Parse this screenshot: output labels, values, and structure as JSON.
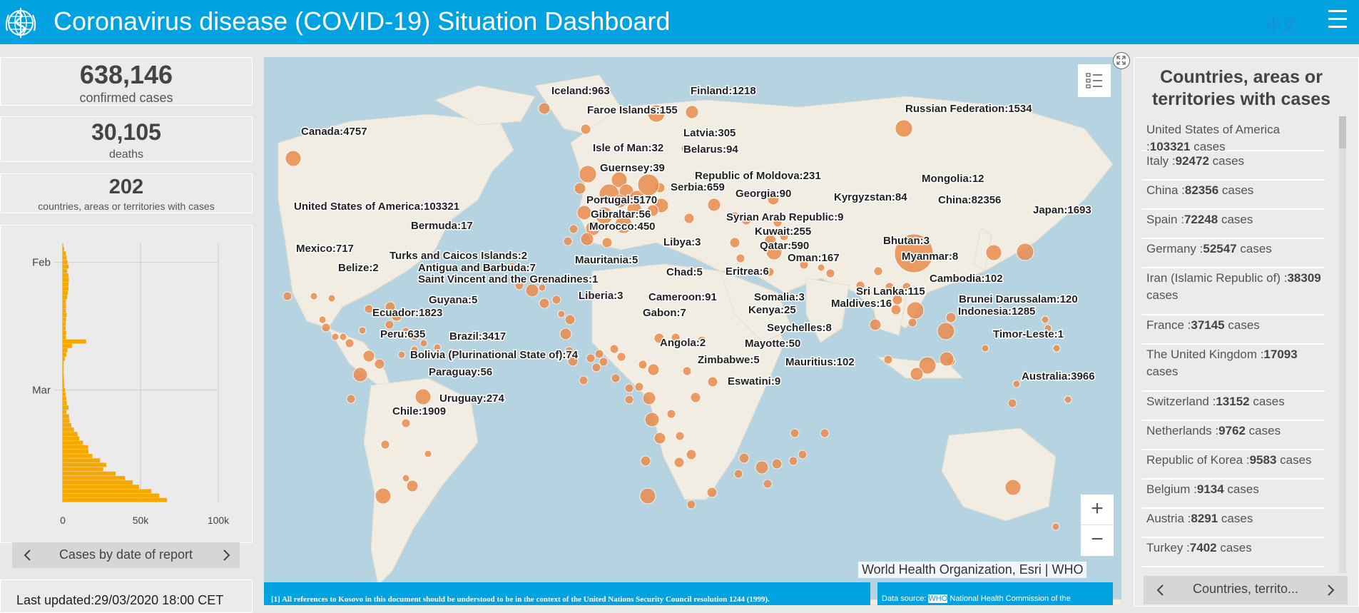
{
  "header": {
    "title": "Coronavirus disease (COVID-19) Situation Dashboard",
    "lang": "中文",
    "logo_icon": "who-emblem-icon",
    "menu_icon": "hamburger-menu-icon",
    "bg_color": "#00a2e0"
  },
  "stats": {
    "confirmed": {
      "value": "638,146",
      "label": "confirmed cases"
    },
    "deaths": {
      "value": "30,105",
      "label": "deaths"
    },
    "countries": {
      "value": "202",
      "label": "countries, areas or territories with cases"
    }
  },
  "left_chart": {
    "nav_label": "Cases by date of report",
    "chart_data": {
      "type": "bar",
      "orientation": "horizontal",
      "y_ticks": [
        "Feb",
        "Mar"
      ],
      "x_ticks": [
        "0",
        "50k",
        "100k"
      ],
      "xlim": [
        0,
        100000
      ],
      "bar_color": "#f5a800",
      "grid": true,
      "note": "daily new confirmed cases; values estimated from gridlines",
      "values": [
        900,
        2000,
        2500,
        3000,
        3800,
        2800,
        3600,
        3900,
        3700,
        3700,
        3200,
        2700,
        2000,
        2100,
        2000,
        2500,
        2100,
        1900,
        1800,
        2200,
        2100,
        15000,
        6000,
        3000,
        2300,
        1300,
        500,
        550,
        450,
        700,
        850,
        1000,
        1400,
        1900,
        2200,
        2600,
        3800,
        2400,
        4000,
        4300,
        5500,
        7200,
        9500,
        10600,
        13000,
        16300,
        16500,
        19000,
        24000,
        28000,
        26000,
        34000,
        40000,
        45000,
        49000,
        57000,
        62000,
        67000
      ]
    }
  },
  "last_updated": "Last updated:29/03/2020 18:00 CET",
  "map": {
    "attribution": "World Health Organization, Esri | WHO",
    "zoom_in": "+",
    "zoom_out": "−",
    "legend_icon": "legend-list-icon",
    "expand_icon": "expand-icon",
    "footnote": "[1] All references to Kosovo in this document should be understood to be in the context of the United Nations Security Council resolution 1244 (1999).",
    "source_prefix": "Data source: ",
    "source_highlight": "WHO",
    "source_suffix": " National Health Commission of the",
    "bubble_color": "#e98c4d",
    "water_color": "#b5d3e0",
    "land_color": "#f1ede3",
    "labels": [
      {
        "text": "Iceland:963"
      },
      {
        "text": "Finland:1218"
      },
      {
        "text": "Faroe Islands:155"
      },
      {
        "text": "Russian Federation:1534"
      },
      {
        "text": "Canada:4757"
      },
      {
        "text": "Latvia:305"
      },
      {
        "text": "Isle of Man:32"
      },
      {
        "text": "Belarus:94"
      },
      {
        "text": "Guernsey:39"
      },
      {
        "text": "Republic of Moldova:231"
      },
      {
        "text": "Mongolia:12"
      },
      {
        "text": "Serbia:659"
      },
      {
        "text": "Georgia:90"
      },
      {
        "text": "Kyrgyzstan:84"
      },
      {
        "text": "China:82356"
      },
      {
        "text": "United States of America:103321"
      },
      {
        "text": "Portugal:5170"
      },
      {
        "text": "Gibraltar:56"
      },
      {
        "text": "Syrian Arab Republic:9"
      },
      {
        "text": "Japan:1693"
      },
      {
        "text": "Bermuda:17"
      },
      {
        "text": "Morocco:450"
      },
      {
        "text": "Kuwait:255"
      },
      {
        "text": "Qatar:590"
      },
      {
        "text": "Libya:3"
      },
      {
        "text": "Bhutan:3"
      },
      {
        "text": "Mexico:717"
      },
      {
        "text": "Turks and Caicos Islands:2"
      },
      {
        "text": "Mauritania:5"
      },
      {
        "text": "Oman:167"
      },
      {
        "text": "Myanmar:8"
      },
      {
        "text": "Belize:2"
      },
      {
        "text": "Antigua and Barbuda:7"
      },
      {
        "text": "Chad:5"
      },
      {
        "text": "Eritrea:6"
      },
      {
        "text": "Cambodia:102"
      },
      {
        "text": "Saint Vincent and the Grenadines:1"
      },
      {
        "text": "Liberia:3"
      },
      {
        "text": "Cameroon:91"
      },
      {
        "text": "Somalia:3"
      },
      {
        "text": "Sri Lanka:115"
      },
      {
        "text": "Brunei Darussalam:120"
      },
      {
        "text": "Guyana:5"
      },
      {
        "text": "Maldives:16"
      },
      {
        "text": "Gabon:7"
      },
      {
        "text": "Kenya:25"
      },
      {
        "text": "Indonesia:1285"
      },
      {
        "text": "Ecuador:1823"
      },
      {
        "text": "Seychelles:8"
      },
      {
        "text": "Timor-Leste:1"
      },
      {
        "text": "Peru:635"
      },
      {
        "text": "Brazil:3417"
      },
      {
        "text": "Angola:2"
      },
      {
        "text": "Mayotte:50"
      },
      {
        "text": "Bolivia (Plurinational State of):74"
      },
      {
        "text": "Zimbabwe:5"
      },
      {
        "text": "Mauritius:102"
      },
      {
        "text": "Paraguay:56"
      },
      {
        "text": "Eswatini:9"
      },
      {
        "text": "Australia:3966"
      },
      {
        "text": "Uruguay:274"
      },
      {
        "text": "Chile:1909"
      }
    ]
  },
  "right_panel": {
    "title": "Countries, areas or territories with cases",
    "nav_label": "Countries, territo...",
    "items": [
      {
        "name": "United States of America :",
        "value": "103321",
        "suffix": " cases"
      },
      {
        "name": "Italy :",
        "value": "92472",
        "suffix": " cases"
      },
      {
        "name": "China :",
        "value": "82356",
        "suffix": " cases"
      },
      {
        "name": "Spain :",
        "value": "72248",
        "suffix": " cases"
      },
      {
        "name": "Germany :",
        "value": "52547",
        "suffix": " cases"
      },
      {
        "name": "Iran (Islamic Republic of) :",
        "value": "38309",
        "suffix": " cases"
      },
      {
        "name": "France :",
        "value": "37145",
        "suffix": " cases"
      },
      {
        "name": "The United Kingdom :",
        "value": "17093",
        "suffix": " cases"
      },
      {
        "name": "Switzerland :",
        "value": "13152",
        "suffix": " cases"
      },
      {
        "name": "Netherlands :",
        "value": "9762",
        "suffix": " cases"
      },
      {
        "name": "Republic of Korea :",
        "value": "9583",
        "suffix": " cases"
      },
      {
        "name": "Belgium :",
        "value": "9134",
        "suffix": " cases"
      },
      {
        "name": "Austria :",
        "value": "8291",
        "suffix": " cases"
      },
      {
        "name": "Turkey :",
        "value": "7402",
        "suffix": " cases"
      }
    ]
  }
}
